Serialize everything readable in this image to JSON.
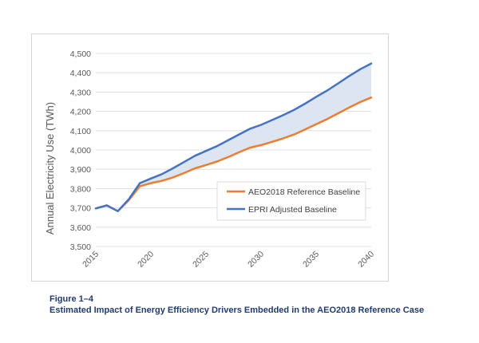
{
  "figure": {
    "number": "Figure 1–4",
    "caption": "Estimated Impact of Energy Efficiency Drivers Embedded in the AEO2018 Reference Case"
  },
  "chart_data": {
    "type": "line",
    "ylabel": "Annual Electricity Use (TWh)",
    "xlabel": "",
    "ylim": [
      3500,
      4500
    ],
    "y_ticks": [
      3500,
      3600,
      3700,
      3800,
      3900,
      4000,
      4100,
      4200,
      4300,
      4400,
      4500
    ],
    "y_tick_labels": [
      "3,500",
      "3,600",
      "3,700",
      "3,800",
      "3,900",
      "4,000",
      "4,100",
      "4,200",
      "4,300",
      "4,400",
      "4,500"
    ],
    "xlim": [
      2015,
      2040
    ],
    "x_ticks": [
      2015,
      2020,
      2025,
      2030,
      2035,
      2040
    ],
    "x_tick_labels": [
      "2015",
      "2020",
      "2025",
      "2030",
      "2035",
      "2040"
    ],
    "x": [
      2015,
      2016,
      2017,
      2018,
      2019,
      2020,
      2021,
      2022,
      2023,
      2024,
      2025,
      2026,
      2027,
      2028,
      2029,
      2030,
      2031,
      2032,
      2033,
      2034,
      2035,
      2036,
      2037,
      2038,
      2039,
      2040
    ],
    "series": [
      {
        "name": "AEO2018 Reference Baseline",
        "color": "#ed7d31",
        "values": [
          3697,
          3713,
          3683,
          3740,
          3812,
          3828,
          3840,
          3858,
          3880,
          3905,
          3922,
          3940,
          3963,
          3988,
          4012,
          4025,
          4042,
          4060,
          4080,
          4106,
          4133,
          4160,
          4190,
          4220,
          4248,
          4272
        ]
      },
      {
        "name": "EPRI Adjusted Baseline",
        "color": "#4472c4",
        "values": [
          3697,
          3713,
          3683,
          3745,
          3828,
          3852,
          3875,
          3905,
          3937,
          3970,
          3995,
          4020,
          4050,
          4080,
          4110,
          4130,
          4155,
          4180,
          4208,
          4240,
          4275,
          4308,
          4345,
          4383,
          4418,
          4448
        ]
      }
    ],
    "fill_between": {
      "color": "#dde5f1"
    },
    "grid": true,
    "legend_position": "bottom-right"
  }
}
